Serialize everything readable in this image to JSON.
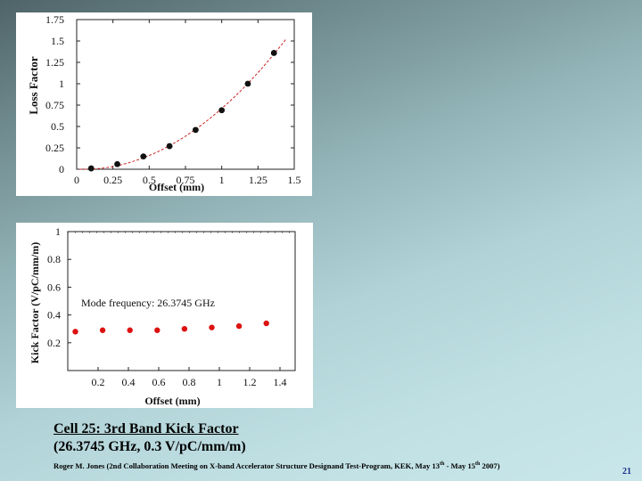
{
  "chart_data": [
    {
      "type": "scatter",
      "ylabel": "Loss Factor",
      "xlabel": "Offset (mm)",
      "xlim": [
        0,
        1.5
      ],
      "ylim": [
        0,
        1.75
      ],
      "xticks": [
        "0",
        "0.25",
        "0.5",
        "0.75",
        "1",
        "1.25",
        "1.5"
      ],
      "yticks": [
        "0",
        "0.25",
        "0.5",
        "0.75",
        "1",
        "1.25",
        "1.5",
        "1.75"
      ],
      "marker_color": "#111111",
      "fit_color": "#cc2222",
      "fit": "quadratic dashed curve",
      "x": [
        0.1,
        0.28,
        0.46,
        0.64,
        0.82,
        1.0,
        1.18,
        1.36
      ],
      "y": [
        0.01,
        0.06,
        0.15,
        0.27,
        0.46,
        0.69,
        1.0,
        1.36
      ]
    },
    {
      "type": "scatter",
      "ylabel": "Kick Factor (V/pC/mm/m)",
      "xlabel": "Offset (mm)",
      "xlim": [
        0,
        1.5
      ],
      "ylim": [
        0,
        1
      ],
      "xticks": [
        "0.2",
        "0.4",
        "0.6",
        "0.8",
        "1",
        "1.2",
        "1.4"
      ],
      "yticks": [
        "0.2",
        "0.4",
        "0.6",
        "0.8",
        "1"
      ],
      "marker_color": "#dd1111",
      "annotation": "Mode frequency: 26.3745 GHz",
      "x": [
        0.05,
        0.23,
        0.41,
        0.59,
        0.77,
        0.95,
        1.13,
        1.31
      ],
      "y": [
        0.28,
        0.29,
        0.29,
        0.29,
        0.3,
        0.31,
        0.32,
        0.34
      ]
    }
  ],
  "caption": {
    "line1": "Cell 25: 3rd Band Kick Factor",
    "line2": "(26.3745 GHz, 0.3 V/pC/mm/m)"
  },
  "footer": {
    "text_main": "Roger M. Jones (2nd Collaboration Meeting on X-band Accelerator Structure Designand Test-Program, KEK, May 13",
    "sup1": "th",
    "text_mid": " - May 15",
    "sup2": "th",
    "text_end": " 2007)"
  },
  "page_number": "21",
  "colors": {
    "background_dark": "#4f6468",
    "background_light": "#c9e7ea",
    "page_number": "#1a2f8a"
  }
}
